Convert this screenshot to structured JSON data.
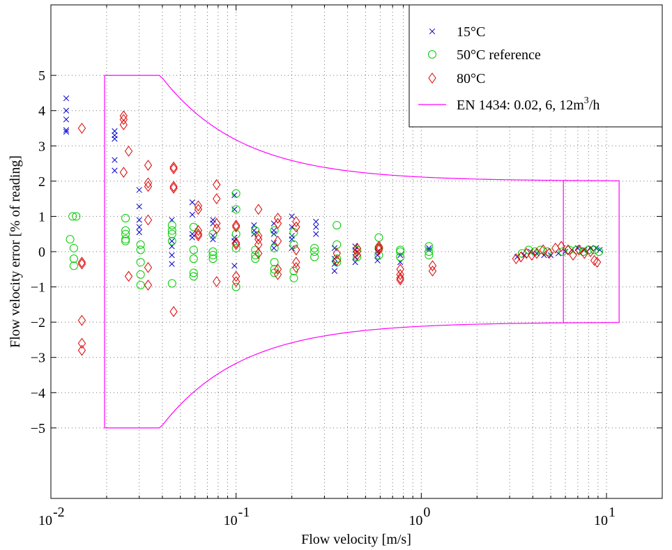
{
  "chart_data": {
    "type": "scatter",
    "title": "",
    "xlabel": "Flow velocity [m/s]",
    "ylabel": "Flow velocity error [% of reading]",
    "xscale": "log",
    "xlim": [
      0.01,
      20
    ],
    "ylim": [
      -7,
      7
    ],
    "grid": true,
    "legend_position": "top-right",
    "x_ticks": [
      {
        "value": 0.01,
        "base": "10",
        "exp": "-2"
      },
      {
        "value": 0.1,
        "base": "10",
        "exp": "-1"
      },
      {
        "value": 1,
        "base": "10",
        "exp": "0"
      },
      {
        "value": 10,
        "base": "10",
        "exp": "1"
      }
    ],
    "y_ticks": [
      {
        "value": 5,
        "label": "5"
      },
      {
        "value": 4,
        "label": "4"
      },
      {
        "value": 3,
        "label": "3"
      },
      {
        "value": 2,
        "label": "2"
      },
      {
        "value": 1,
        "label": "1"
      },
      {
        "value": 0,
        "label": "0"
      },
      {
        "value": -1,
        "label": "−1"
      },
      {
        "value": -2,
        "label": "−2"
      },
      {
        "value": -3,
        "label": "−3"
      },
      {
        "value": -4,
        "label": "−4"
      },
      {
        "value": -5,
        "label": "−5"
      }
    ],
    "series": [
      {
        "name": "15°C",
        "marker": "x",
        "color": "#0000cc",
        "points": [
          [
            0.0121,
            4.35
          ],
          [
            0.0121,
            4.0
          ],
          [
            0.0121,
            3.75
          ],
          [
            0.0121,
            3.45
          ],
          [
            0.0121,
            3.4
          ],
          [
            0.0221,
            3.42
          ],
          [
            0.0221,
            3.3
          ],
          [
            0.0221,
            3.2
          ],
          [
            0.0221,
            2.6
          ],
          [
            0.0221,
            2.3
          ],
          [
            0.03,
            1.75
          ],
          [
            0.03,
            1.28
          ],
          [
            0.03,
            0.9
          ],
          [
            0.03,
            0.7
          ],
          [
            0.03,
            0.55
          ],
          [
            0.045,
            0.9
          ],
          [
            0.045,
            0.3
          ],
          [
            0.045,
            0.15
          ],
          [
            0.045,
            -0.1
          ],
          [
            0.045,
            -0.35
          ],
          [
            0.058,
            1.4
          ],
          [
            0.058,
            1.05
          ],
          [
            0.058,
            0.5
          ],
          [
            0.058,
            0.4
          ],
          [
            0.075,
            0.9
          ],
          [
            0.075,
            0.8
          ],
          [
            0.075,
            0.45
          ],
          [
            0.075,
            0.35
          ],
          [
            0.098,
            1.6
          ],
          [
            0.098,
            1.2
          ],
          [
            0.098,
            0.4
          ],
          [
            0.098,
            0.3
          ],
          [
            0.098,
            -0.4
          ],
          [
            0.125,
            0.75
          ],
          [
            0.125,
            0.6
          ],
          [
            0.125,
            0.5
          ],
          [
            0.16,
            0.8
          ],
          [
            0.16,
            0.6
          ],
          [
            0.16,
            0.5
          ],
          [
            0.16,
            0.25
          ],
          [
            0.16,
            0.1
          ],
          [
            0.2,
            1.0
          ],
          [
            0.2,
            0.7
          ],
          [
            0.2,
            0.45
          ],
          [
            0.2,
            0.35
          ],
          [
            0.2,
            0.1
          ],
          [
            0.27,
            0.85
          ],
          [
            0.27,
            0.7
          ],
          [
            0.27,
            0.5
          ],
          [
            0.34,
            0.1
          ],
          [
            0.34,
            -0.2
          ],
          [
            0.34,
            -0.35
          ],
          [
            0.34,
            -0.55
          ],
          [
            0.44,
            0.15
          ],
          [
            0.44,
            0.05
          ],
          [
            0.44,
            -0.15
          ],
          [
            0.44,
            -0.3
          ],
          [
            0.58,
            0.0
          ],
          [
            0.58,
            -0.1
          ],
          [
            0.58,
            -0.25
          ],
          [
            0.77,
            -0.1
          ],
          [
            0.77,
            -0.3
          ],
          [
            1.1,
            0.1
          ],
          [
            1.1,
            0.05
          ],
          [
            3.3,
            -0.15
          ],
          [
            3.6,
            -0.1
          ],
          [
            3.9,
            0.0
          ],
          [
            4.2,
            -0.05
          ],
          [
            4.6,
            -0.1
          ],
          [
            5.0,
            -0.1
          ],
          [
            5.5,
            -0.05
          ],
          [
            6.0,
            0.0
          ],
          [
            6.5,
            0.05
          ],
          [
            7.0,
            0.1
          ],
          [
            7.6,
            0.05
          ],
          [
            8.2,
            0.1
          ],
          [
            8.8,
            0.1
          ],
          [
            9.2,
            0.05
          ]
        ]
      },
      {
        "name": "50°C reference",
        "marker": "o",
        "color": "#00cc00",
        "points": [
          [
            0.0127,
            0.35
          ],
          [
            0.0131,
            1.0
          ],
          [
            0.0133,
            0.1
          ],
          [
            0.0133,
            -0.2
          ],
          [
            0.0133,
            -0.4
          ],
          [
            0.0137,
            1.0
          ],
          [
            0.0253,
            0.95
          ],
          [
            0.0253,
            0.6
          ],
          [
            0.0253,
            0.5
          ],
          [
            0.0253,
            0.35
          ],
          [
            0.0253,
            0.3
          ],
          [
            0.0305,
            0.2
          ],
          [
            0.0305,
            0.05
          ],
          [
            0.0305,
            -0.3
          ],
          [
            0.0305,
            -0.65
          ],
          [
            0.0305,
            -0.95
          ],
          [
            0.0451,
            0.75
          ],
          [
            0.0451,
            0.6
          ],
          [
            0.0451,
            0.5
          ],
          [
            0.0451,
            0.3
          ],
          [
            0.0451,
            -0.9
          ],
          [
            0.059,
            0.7
          ],
          [
            0.059,
            0.05
          ],
          [
            0.059,
            -0.2
          ],
          [
            0.059,
            -0.6
          ],
          [
            0.059,
            -0.7
          ],
          [
            0.075,
            0.5
          ],
          [
            0.075,
            0.0
          ],
          [
            0.075,
            -0.1
          ],
          [
            0.075,
            -0.2
          ],
          [
            0.1,
            1.65
          ],
          [
            0.1,
            1.2
          ],
          [
            0.1,
            0.5
          ],
          [
            0.1,
            0.1
          ],
          [
            0.1,
            -1.0
          ],
          [
            0.127,
            0.6
          ],
          [
            0.127,
            0.05
          ],
          [
            0.127,
            -0.1
          ],
          [
            0.127,
            -0.2
          ],
          [
            0.161,
            0.6
          ],
          [
            0.161,
            0.1
          ],
          [
            0.161,
            -0.3
          ],
          [
            0.161,
            -0.5
          ],
          [
            0.161,
            -0.6
          ],
          [
            0.205,
            0.55
          ],
          [
            0.205,
            0.2
          ],
          [
            0.205,
            -0.55
          ],
          [
            0.205,
            -0.75
          ],
          [
            0.265,
            0.1
          ],
          [
            0.265,
            0.0
          ],
          [
            0.265,
            -0.15
          ],
          [
            0.35,
            0.75
          ],
          [
            0.35,
            0.2
          ],
          [
            0.35,
            -0.2
          ],
          [
            0.35,
            -0.3
          ],
          [
            0.45,
            0.05
          ],
          [
            0.45,
            -0.15
          ],
          [
            0.59,
            0.4
          ],
          [
            0.59,
            0.1
          ],
          [
            0.59,
            -0.1
          ],
          [
            0.77,
            0.05
          ],
          [
            0.77,
            0.0
          ],
          [
            0.77,
            -0.15
          ],
          [
            1.1,
            0.15
          ],
          [
            1.1,
            0.0
          ],
          [
            1.1,
            -0.1
          ],
          [
            3.5,
            -0.05
          ],
          [
            3.8,
            0.05
          ],
          [
            4.1,
            0.0
          ],
          [
            4.4,
            0.05
          ],
          [
            4.8,
            0.0
          ],
          [
            5.8,
            0.0
          ],
          [
            6.3,
            0.05
          ],
          [
            6.9,
            0.05
          ],
          [
            7.5,
            0.0
          ],
          [
            8.0,
            0.05
          ],
          [
            8.6,
            0.05
          ],
          [
            9.1,
            0.0
          ]
        ]
      },
      {
        "name": "80°C",
        "marker": "diamond",
        "color": "#dd0000",
        "points": [
          [
            0.0147,
            3.5
          ],
          [
            0.0147,
            -0.3
          ],
          [
            0.0147,
            -0.35
          ],
          [
            0.0147,
            -1.95
          ],
          [
            0.0147,
            -2.6
          ],
          [
            0.0147,
            -2.8
          ],
          [
            0.0247,
            3.85
          ],
          [
            0.0247,
            3.75
          ],
          [
            0.0247,
            3.6
          ],
          [
            0.0247,
            2.25
          ],
          [
            0.0263,
            2.85
          ],
          [
            0.0263,
            -0.7
          ],
          [
            0.0335,
            2.45
          ],
          [
            0.0335,
            1.95
          ],
          [
            0.0335,
            1.85
          ],
          [
            0.0335,
            0.9
          ],
          [
            0.0335,
            -0.45
          ],
          [
            0.0335,
            -0.95
          ],
          [
            0.046,
            2.4
          ],
          [
            0.046,
            2.35
          ],
          [
            0.046,
            1.85
          ],
          [
            0.046,
            1.8
          ],
          [
            0.046,
            -1.7
          ],
          [
            0.0625,
            1.3
          ],
          [
            0.0625,
            1.2
          ],
          [
            0.0625,
            0.6
          ],
          [
            0.0625,
            0.5
          ],
          [
            0.0625,
            0.45
          ],
          [
            0.0785,
            1.9
          ],
          [
            0.0785,
            1.5
          ],
          [
            0.0785,
            0.8
          ],
          [
            0.0785,
            0.65
          ],
          [
            0.0785,
            -0.85
          ],
          [
            0.1,
            0.75
          ],
          [
            0.1,
            0.7
          ],
          [
            0.1,
            0.25
          ],
          [
            0.1,
            0.2
          ],
          [
            0.1,
            -0.7
          ],
          [
            0.1,
            -0.85
          ],
          [
            0.132,
            1.2
          ],
          [
            0.132,
            0.45
          ],
          [
            0.132,
            0.35
          ],
          [
            0.132,
            0.2
          ],
          [
            0.132,
            -0.05
          ],
          [
            0.168,
            0.95
          ],
          [
            0.168,
            0.8
          ],
          [
            0.168,
            0.3
          ],
          [
            0.168,
            -0.5
          ],
          [
            0.168,
            -0.65
          ],
          [
            0.211,
            0.85
          ],
          [
            0.211,
            0.7
          ],
          [
            0.211,
            0.05
          ],
          [
            0.211,
            -0.3
          ],
          [
            0.211,
            -0.45
          ],
          [
            0.35,
            -0.05
          ],
          [
            0.35,
            -0.25
          ],
          [
            0.45,
            0.1
          ],
          [
            0.45,
            0.0
          ],
          [
            0.45,
            -0.1
          ],
          [
            0.59,
            0.15
          ],
          [
            0.59,
            0.1
          ],
          [
            0.59,
            0.05
          ],
          [
            0.77,
            -0.5
          ],
          [
            0.77,
            -0.65
          ],
          [
            0.77,
            -0.75
          ],
          [
            0.77,
            -0.8
          ],
          [
            1.15,
            -0.4
          ],
          [
            1.15,
            -0.55
          ],
          [
            3.25,
            -0.2
          ],
          [
            3.45,
            -0.15
          ],
          [
            3.7,
            -0.05
          ],
          [
            3.95,
            -0.1
          ],
          [
            4.2,
            -0.05
          ],
          [
            4.55,
            0.05
          ],
          [
            4.9,
            -0.05
          ],
          [
            5.3,
            0.1
          ],
          [
            5.7,
            0.15
          ],
          [
            6.2,
            0.05
          ],
          [
            6.6,
            -0.1
          ],
          [
            7.1,
            0.05
          ],
          [
            7.6,
            -0.05
          ],
          [
            8.2,
            0.0
          ],
          [
            8.6,
            -0.25
          ],
          [
            8.9,
            -0.3
          ]
        ]
      },
      {
        "name": "EN 1434: 0.02, 6, 12m³/h",
        "label_parts": [
          "EN 1434: 0.02, 6, 12m",
          "3",
          "/h"
        ],
        "marker": "line",
        "color": "#ff00ff",
        "qi_velocity": 0.0195,
        "qp_velocity": 5.85,
        "qs_velocity": 11.7
      }
    ]
  }
}
